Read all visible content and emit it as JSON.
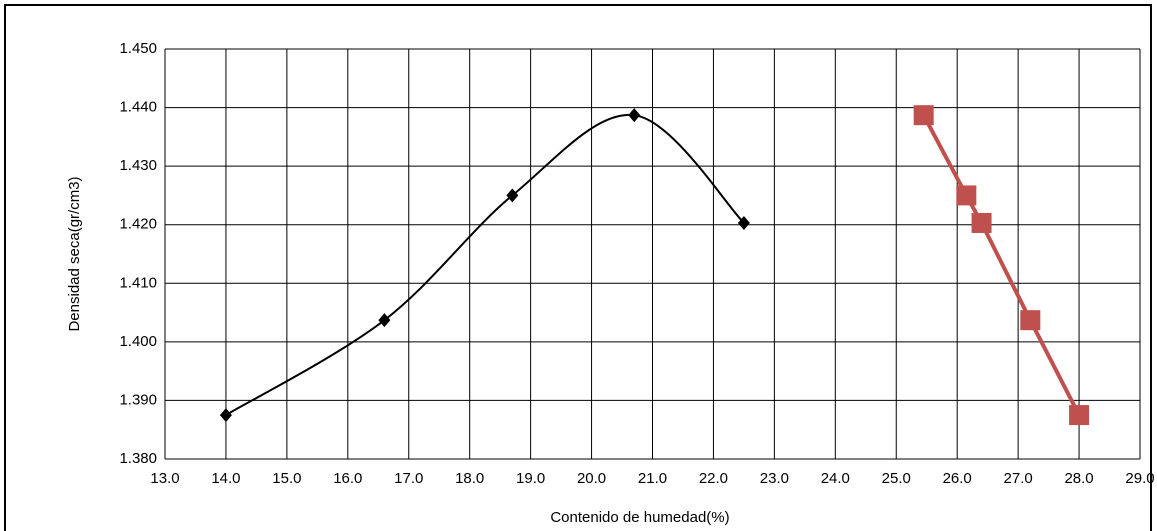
{
  "chart_data": {
    "type": "line",
    "xlabel": "Contenido de humedad(%)",
    "ylabel": "Densidad seca(gr/cm3)",
    "xlim": [
      13,
      29
    ],
    "xticks": [
      {
        "value": 13,
        "label": "13.0"
      },
      {
        "value": 14,
        "label": "14.0"
      },
      {
        "value": 15,
        "label": "15.0"
      },
      {
        "value": 16,
        "label": "16.0"
      },
      {
        "value": 17,
        "label": "17.0"
      },
      {
        "value": 18,
        "label": "18.0"
      },
      {
        "value": 19,
        "label": "19.0"
      },
      {
        "value": 20,
        "label": "20.0"
      },
      {
        "value": 21,
        "label": "21.0"
      },
      {
        "value": 22,
        "label": "22.0"
      },
      {
        "value": 23,
        "label": "23.0"
      },
      {
        "value": 24,
        "label": "24.0"
      },
      {
        "value": 25,
        "label": "25.0"
      },
      {
        "value": 26,
        "label": "26.0"
      },
      {
        "value": 27,
        "label": "27.0"
      },
      {
        "value": 28,
        "label": "28.0"
      },
      {
        "value": 29,
        "label": "29.0"
      }
    ],
    "ylim": [
      1.38,
      1.45
    ],
    "yticks": [
      {
        "value": 1.38,
        "label": "1.380"
      },
      {
        "value": 1.39,
        "label": "1.390"
      },
      {
        "value": 1.4,
        "label": "1.400"
      },
      {
        "value": 1.41,
        "label": "1.410"
      },
      {
        "value": 1.42,
        "label": "1.420"
      },
      {
        "value": 1.43,
        "label": "1.430"
      },
      {
        "value": 1.44,
        "label": "1.440"
      },
      {
        "value": 1.45,
        "label": "1.450"
      }
    ],
    "grid": true,
    "series": [
      {
        "color": "#000000",
        "marker": "diamond",
        "smooth": true,
        "x": [
          14.0,
          16.6,
          18.7,
          20.7,
          22.5
        ],
        "values": [
          1.3875,
          1.4037,
          1.425,
          1.4387,
          1.4203
        ]
      },
      {
        "color": "#c0504d",
        "marker": "square",
        "smooth": false,
        "x": [
          25.45,
          26.15,
          26.4,
          27.2,
          28.0
        ],
        "values": [
          1.4387,
          1.425,
          1.4203,
          1.4037,
          1.3875
        ]
      }
    ]
  }
}
